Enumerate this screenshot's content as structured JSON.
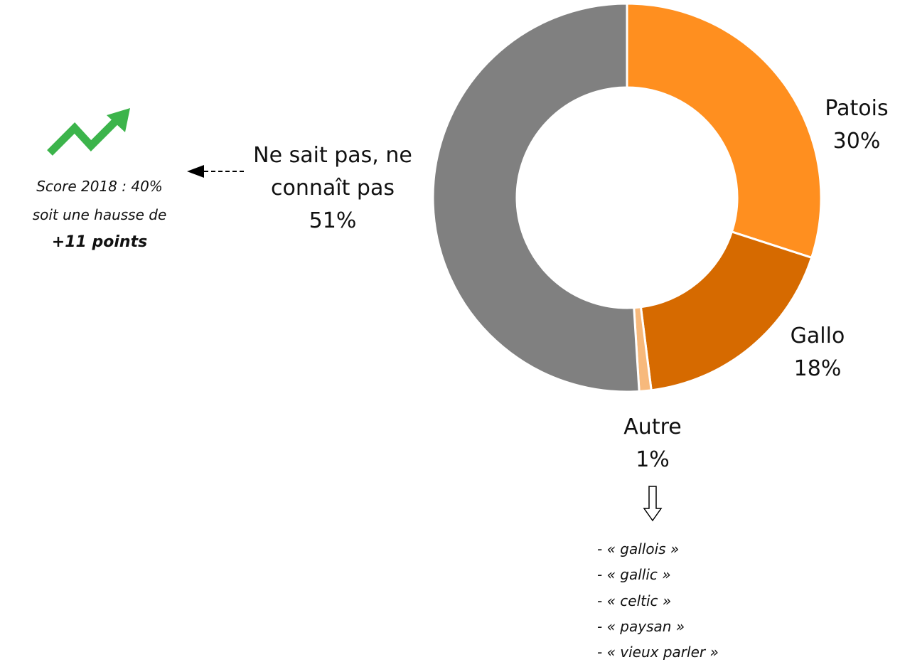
{
  "chart_data": {
    "type": "donut",
    "categories": [
      "Patois",
      "Gallo",
      "Autre",
      "Ne sait pas, ne\nconnaît pas"
    ],
    "values": [
      30,
      18,
      1,
      51
    ],
    "value_labels": [
      "30%",
      "18%",
      "1%",
      "51%"
    ],
    "colors": [
      "#ff8f1f",
      "#d66a00",
      "#f7b97c",
      "#808080"
    ],
    "annotations": [
      "Score 2018 : 40%",
      "soit une hausse de",
      "+11 points"
    ],
    "autre_details": [
      "- « gallois »",
      "- « gallic »",
      "- « celtic »",
      "- « paysan »",
      "- « vieux parler »"
    ]
  }
}
